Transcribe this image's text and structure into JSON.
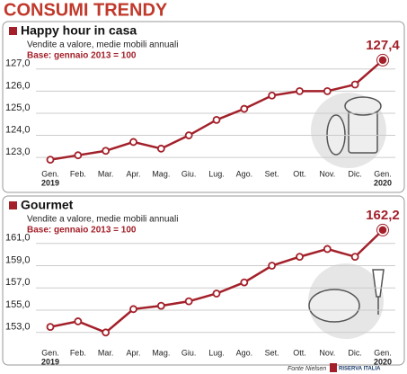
{
  "title": "CONSUMI TRENDY",
  "chart_data": [
    {
      "type": "line",
      "title": "Happy hour in casa",
      "subtitle": "Vendite a valore, medie mobili annuali",
      "note": "Base: gennaio 2013 = 100",
      "categories": [
        "Gen.",
        "Feb.",
        "Mar.",
        "Apr.",
        "Mag.",
        "Giu.",
        "Lug.",
        "Ago.",
        "Set.",
        "Ott.",
        "Nov.",
        "Dic.",
        "Gen."
      ],
      "years": [
        "2019",
        null,
        null,
        null,
        null,
        null,
        null,
        null,
        null,
        null,
        null,
        null,
        "2020"
      ],
      "series": [
        {
          "color": "#a3202a",
          "values": [
            122.9,
            123.1,
            123.3,
            123.7,
            123.4,
            124.0,
            124.7,
            125.2,
            125.8,
            126.0,
            126.0,
            126.3,
            127.4
          ],
          "value_labels": [
            null,
            null,
            null,
            null,
            null,
            null,
            null,
            null,
            null,
            null,
            null,
            null,
            "127,4"
          ]
        }
      ],
      "ylim": [
        122.6,
        127.6
      ],
      "yticks": [
        {
          "value": 123,
          "label": "123,0"
        },
        {
          "value": 124,
          "label": "124,0"
        },
        {
          "value": 125,
          "label": "125,0"
        },
        {
          "value": 126,
          "label": "126,0"
        },
        {
          "value": 127,
          "label": "127,0"
        }
      ],
      "grid": true
    },
    {
      "type": "line",
      "title": "Gourmet",
      "subtitle": "Vendite a valore, medie mobili annuali",
      "note": "Base: gennaio 2013 = 100",
      "categories": [
        "Gen.",
        "Feb.",
        "Mar.",
        "Apr.",
        "Mag.",
        "Giu.",
        "Lug.",
        "Ago.",
        "Set.",
        "Ott.",
        "Nov.",
        "Dic.",
        "Gen."
      ],
      "years": [
        "2019",
        null,
        null,
        null,
        null,
        null,
        null,
        null,
        null,
        null,
        null,
        null,
        "2020"
      ],
      "series": [
        {
          "color": "#a3202a",
          "values": [
            153.5,
            154.0,
            153.0,
            155.1,
            155.4,
            155.8,
            156.5,
            157.5,
            159.0,
            159.8,
            160.5,
            159.8,
            162.2
          ],
          "value_labels": [
            null,
            null,
            null,
            null,
            null,
            null,
            null,
            null,
            null,
            null,
            null,
            null,
            "162,2"
          ]
        }
      ],
      "ylim": [
        152.5,
        163
      ],
      "yticks": [
        {
          "value": 153,
          "label": "153,0"
        },
        {
          "value": 155,
          "label": "155,0"
        },
        {
          "value": 157,
          "label": "157,0"
        },
        {
          "value": 159,
          "label": "159,0"
        },
        {
          "value": 161,
          "label": "161,0"
        }
      ],
      "grid": true
    }
  ],
  "source": "Fonte Nielsen",
  "logo": "RISERVA ITALIA"
}
